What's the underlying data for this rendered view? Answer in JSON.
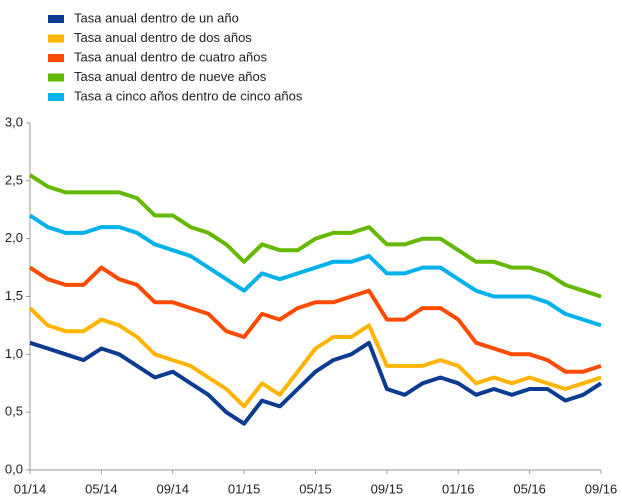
{
  "chart_data": {
    "type": "line",
    "categories": [
      "01/14",
      null,
      null,
      null,
      "05/14",
      null,
      null,
      null,
      "09/14",
      null,
      null,
      null,
      "01/15",
      null,
      null,
      null,
      "05/15",
      null,
      null,
      null,
      "09/15",
      null,
      null,
      null,
      "01/16",
      null,
      null,
      null,
      "05/16",
      null,
      null,
      null,
      "09/16"
    ],
    "series": [
      {
        "name": "Tasa anual dentro de un año",
        "color": "#0b3c91",
        "values": [
          1.1,
          1.05,
          1.0,
          0.95,
          1.05,
          1.0,
          0.9,
          0.8,
          0.85,
          0.75,
          0.65,
          0.5,
          0.4,
          0.6,
          0.55,
          0.7,
          0.85,
          0.95,
          1.0,
          1.1,
          0.7,
          0.65,
          0.75,
          0.8,
          0.75,
          0.65,
          0.7,
          0.65,
          0.7,
          0.7,
          0.6,
          0.65,
          0.75
        ]
      },
      {
        "name": "Tasa anual dentro de dos años",
        "color": "#ffb400",
        "values": [
          1.4,
          1.25,
          1.2,
          1.2,
          1.3,
          1.25,
          1.15,
          1.0,
          0.95,
          0.9,
          0.8,
          0.7,
          0.55,
          0.75,
          0.65,
          0.85,
          1.05,
          1.15,
          1.15,
          1.25,
          0.9,
          0.9,
          0.9,
          0.95,
          0.9,
          0.75,
          0.8,
          0.75,
          0.8,
          0.75,
          0.7,
          0.75,
          0.8
        ]
      },
      {
        "name": "Tasa anual dentro de cuatro años",
        "color": "#ff4b00",
        "values": [
          1.75,
          1.65,
          1.6,
          1.6,
          1.75,
          1.65,
          1.6,
          1.45,
          1.45,
          1.4,
          1.35,
          1.2,
          1.15,
          1.35,
          1.3,
          1.4,
          1.45,
          1.45,
          1.5,
          1.55,
          1.3,
          1.3,
          1.4,
          1.4,
          1.3,
          1.1,
          1.05,
          1.0,
          1.0,
          0.95,
          0.85,
          0.85,
          0.9
        ]
      },
      {
        "name": "Tasa anual dentro de nueve años",
        "color": "#65b800",
        "values": [
          2.55,
          2.45,
          2.4,
          2.4,
          2.4,
          2.4,
          2.35,
          2.2,
          2.2,
          2.1,
          2.05,
          1.95,
          1.8,
          1.95,
          1.9,
          1.9,
          2.0,
          2.05,
          2.05,
          2.1,
          1.95,
          1.95,
          2.0,
          2.0,
          1.9,
          1.8,
          1.8,
          1.75,
          1.75,
          1.7,
          1.6,
          1.55,
          1.5
        ]
      },
      {
        "name": "Tasa a cinco años dentro de cinco años",
        "color": "#00b1ea",
        "values": [
          2.2,
          2.1,
          2.05,
          2.05,
          2.1,
          2.1,
          2.05,
          1.95,
          1.9,
          1.85,
          1.75,
          1.65,
          1.55,
          1.7,
          1.65,
          1.7,
          1.75,
          1.8,
          1.8,
          1.85,
          1.7,
          1.7,
          1.75,
          1.75,
          1.65,
          1.55,
          1.5,
          1.5,
          1.5,
          1.45,
          1.35,
          1.3,
          1.25
        ]
      }
    ],
    "ylim": [
      0,
      3
    ],
    "yticks": [
      {
        "value": 0,
        "label": "0,0"
      },
      {
        "value": 0.5,
        "label": "0,5"
      },
      {
        "value": 1,
        "label": "1,0"
      },
      {
        "value": 1.5,
        "label": "1,5"
      },
      {
        "value": 2,
        "label": "2,0"
      },
      {
        "value": 2.5,
        "label": "2,5"
      },
      {
        "value": 3,
        "label": "3,0"
      }
    ],
    "grid": false,
    "legend": "top-left"
  }
}
